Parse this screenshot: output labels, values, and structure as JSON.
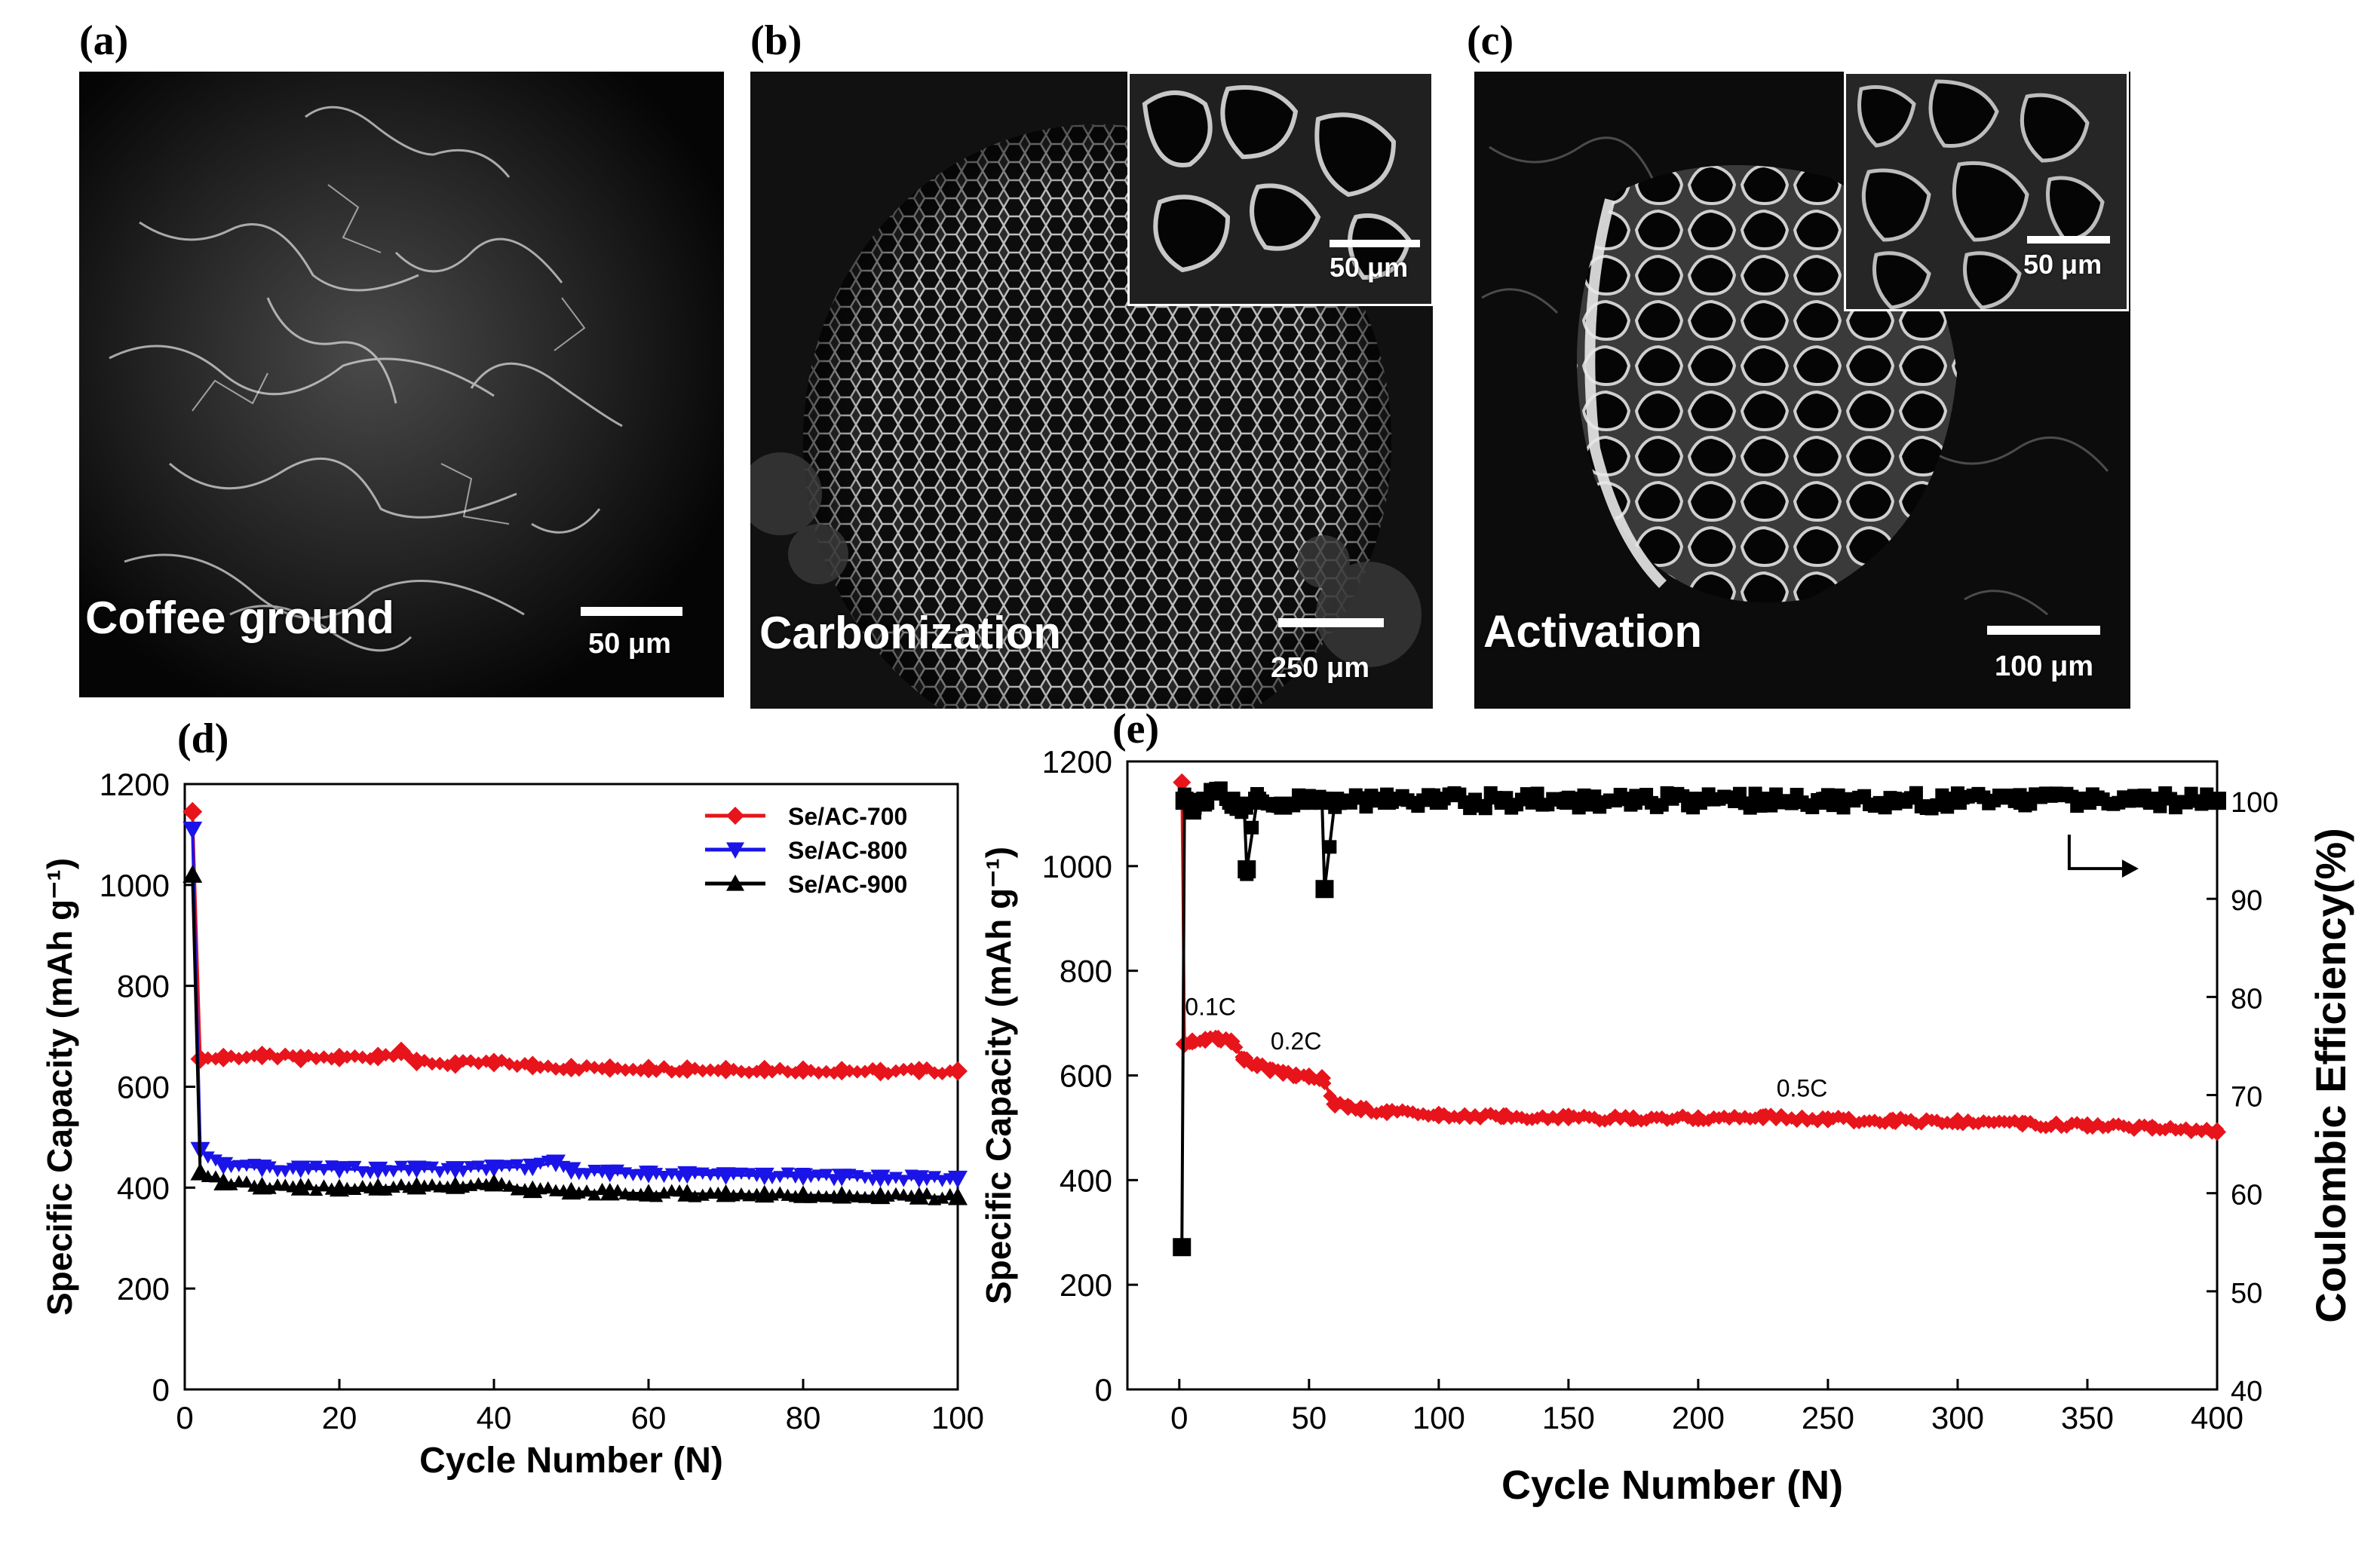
{
  "panels": {
    "a": {
      "letter": "(a)",
      "caption": "Coffee ground",
      "scale": "50 μm"
    },
    "b": {
      "letter": "(b)",
      "caption": "Carbonization",
      "scale": "250 μm",
      "inset_scale": "50 μm"
    },
    "c": {
      "letter": "(c)",
      "caption": "Activation",
      "scale": "100 μm",
      "inset_scale": "50 μm"
    },
    "d": {
      "letter": "(d)"
    },
    "e": {
      "letter": "(e)"
    }
  },
  "colors": {
    "red": "#e8141b",
    "blue": "#1a14e8",
    "black": "#000000"
  },
  "chart_data": [
    {
      "id": "d",
      "type": "line",
      "title": "",
      "xlabel": "Cycle Number (N)",
      "ylabel": "Specific Capacity (mAh g⁻¹)",
      "xlim": [
        0,
        100
      ],
      "ylim": [
        0,
        1200
      ],
      "xticks": [
        0,
        20,
        40,
        60,
        80,
        100
      ],
      "yticks": [
        0,
        200,
        400,
        600,
        800,
        1000,
        1200
      ],
      "legend": "top-right",
      "series": [
        {
          "name": "Se/AC-700",
          "color": "#e8141b",
          "marker": "diamond",
          "x": [
            1,
            2,
            5,
            10,
            15,
            20,
            25,
            28,
            30,
            35,
            40,
            45,
            50,
            55,
            60,
            65,
            70,
            75,
            80,
            85,
            90,
            95,
            100
          ],
          "y": [
            1145,
            655,
            658,
            662,
            656,
            658,
            660,
            670,
            650,
            645,
            648,
            642,
            638,
            637,
            636,
            635,
            634,
            634,
            633,
            632,
            630,
            632,
            631
          ]
        },
        {
          "name": "Se/AC-800",
          "color": "#1a14e8",
          "marker": "triangle-down",
          "x": [
            1,
            2,
            5,
            10,
            15,
            20,
            25,
            30,
            35,
            40,
            45,
            48,
            50,
            55,
            60,
            65,
            70,
            75,
            80,
            85,
            90,
            95,
            100
          ],
          "y": [
            1110,
            475,
            445,
            440,
            438,
            437,
            436,
            438,
            437,
            440,
            442,
            450,
            435,
            430,
            428,
            427,
            425,
            424,
            423,
            422,
            420,
            419,
            418
          ]
        },
        {
          "name": "Se/AC-900",
          "color": "#000000",
          "marker": "triangle-up",
          "x": [
            1,
            2,
            5,
            10,
            15,
            20,
            25,
            30,
            35,
            40,
            45,
            50,
            55,
            60,
            65,
            70,
            75,
            80,
            85,
            90,
            95,
            100
          ],
          "y": [
            1020,
            430,
            410,
            402,
            400,
            398,
            400,
            402,
            403,
            408,
            395,
            392,
            390,
            388,
            388,
            387,
            386,
            385,
            384,
            383,
            382,
            381
          ]
        }
      ]
    },
    {
      "id": "e",
      "type": "line",
      "title": "",
      "xlabel": "Cycle Number (N)",
      "ylabel": "Specific Capacity (mAh g⁻¹)",
      "y2label": "Coulombic Efficiency(%)",
      "xlim": [
        -20,
        400
      ],
      "ylim": [
        0,
        1200
      ],
      "y2lim": [
        40,
        104
      ],
      "xticks": [
        0,
        50,
        100,
        150,
        200,
        250,
        300,
        350,
        400
      ],
      "yticks": [
        0,
        200,
        400,
        600,
        800,
        1000,
        1200
      ],
      "y2ticks": [
        40,
        50,
        60,
        70,
        80,
        90,
        100
      ],
      "annotations": [
        {
          "text": "0.1C",
          "x": 12,
          "y": 715
        },
        {
          "text": "0.2C",
          "x": 45,
          "y": 650
        },
        {
          "text": "0.5C",
          "x": 240,
          "y": 560
        }
      ],
      "series": [
        {
          "name": "Capacity",
          "axis": "left",
          "color": "#e8141b",
          "marker": "diamond",
          "x": [
            1,
            2,
            5,
            10,
            15,
            20,
            25,
            30,
            35,
            40,
            45,
            50,
            55,
            60,
            65,
            70,
            80,
            100,
            125,
            150,
            175,
            200,
            225,
            250,
            275,
            300,
            325,
            350,
            375,
            400
          ],
          "y": [
            1160,
            660,
            665,
            668,
            670,
            665,
            630,
            620,
            610,
            605,
            600,
            598,
            595,
            545,
            540,
            535,
            530,
            525,
            522,
            520,
            518,
            518,
            520,
            516,
            514,
            512,
            508,
            504,
            500,
            492
          ]
        },
        {
          "name": "Coulombic Efficiency",
          "axis": "right",
          "color": "#000000",
          "marker": "square",
          "x": [
            1,
            2,
            5,
            10,
            15,
            20,
            25,
            26,
            30,
            40,
            50,
            55,
            56,
            60,
            80,
            100,
            125,
            150,
            175,
            200,
            225,
            250,
            275,
            300,
            325,
            350,
            375,
            400
          ],
          "y": [
            54.5,
            100,
            99,
            100,
            101,
            100,
            99.5,
            93,
            100,
            99.5,
            100,
            100,
            91,
            100,
            100,
            100,
            100,
            100,
            100,
            100,
            100,
            100,
            100,
            100,
            100,
            100,
            100,
            100
          ]
        }
      ]
    }
  ]
}
